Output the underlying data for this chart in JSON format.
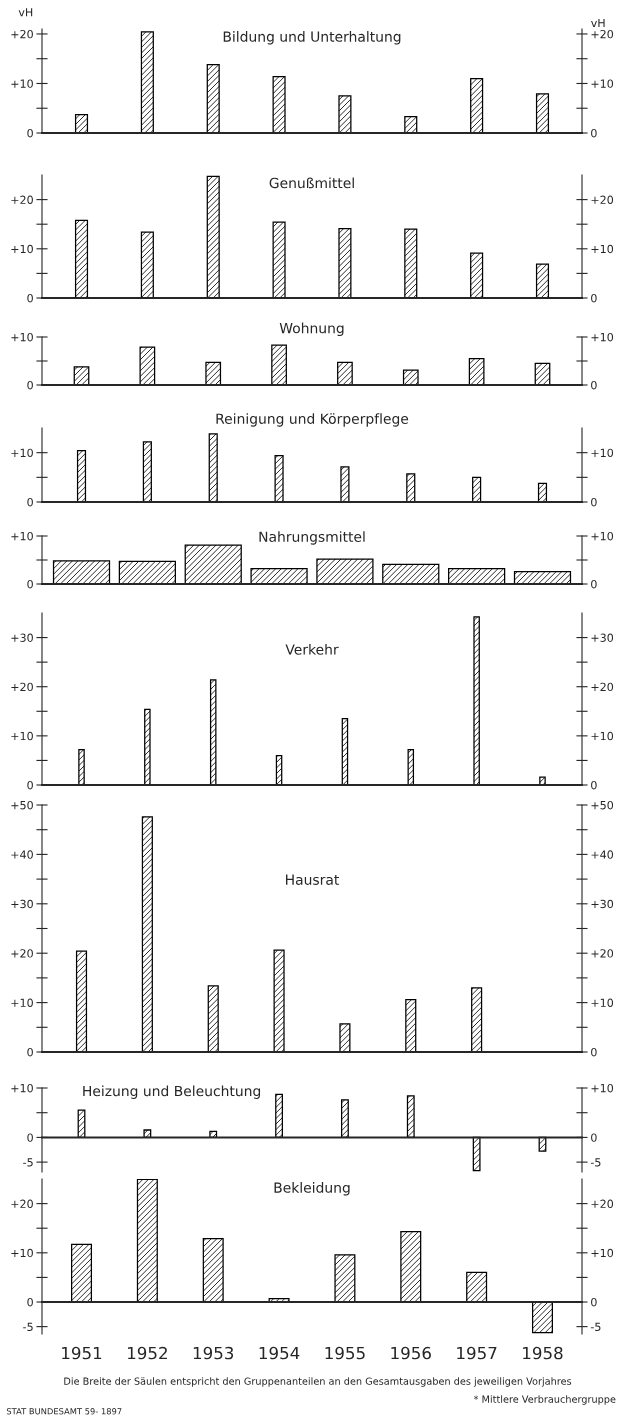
{
  "chart_data": [
    {
      "type": "bar",
      "title": "Bildung und Unterhaltung",
      "ylabel": "vH",
      "y2label": "vH",
      "categories": [
        null,
        null,
        null,
        null,
        null,
        null,
        null,
        null
      ],
      "tick_labels": "y",
      "series": [
        {
          "color": "#000000",
          "values": [
            3.7,
            20.4,
            13.8,
            11.4,
            7.5,
            3.3,
            11.0,
            7.9
          ]
        }
      ],
      "ylim": [
        0,
        21
      ],
      "yticks": [
        {
          "value": 0,
          "label": "0"
        },
        {
          "value": 5,
          "label": null
        },
        {
          "value": 10,
          "label": "+10"
        },
        {
          "value": 15,
          "label": null
        },
        {
          "value": 20,
          "label": "+20"
        }
      ],
      "y2lim": [
        0,
        21
      ],
      "y2ticks": [
        {
          "value": 0,
          "label": "0"
        },
        {
          "value": 5,
          "label": null
        },
        {
          "value": 10,
          "label": "+10"
        },
        {
          "value": 15,
          "label": null
        },
        {
          "value": 20,
          "label": "+20"
        }
      ]
    },
    {
      "type": "bar",
      "title": "Genußmittel",
      "categories": [
        null,
        null,
        null,
        null,
        null,
        null,
        null,
        null
      ],
      "tick_labels": "y",
      "series": [
        {
          "color": "#000000",
          "values": [
            15.8,
            13.4,
            24.7,
            15.4,
            14.1,
            14.0,
            9.1,
            6.9
          ]
        }
      ],
      "ylim": [
        0,
        25
      ],
      "yticks": [
        {
          "value": 0,
          "label": "0"
        },
        {
          "value": 5,
          "label": null
        },
        {
          "value": 10,
          "label": "+10"
        },
        {
          "value": 15,
          "label": null
        },
        {
          "value": 20,
          "label": "+20"
        }
      ],
      "y2lim": [
        0,
        25
      ],
      "y2ticks": [
        {
          "value": 0,
          "label": "0"
        },
        {
          "value": 5,
          "label": null
        },
        {
          "value": 10,
          "label": "+10"
        },
        {
          "value": 15,
          "label": null
        },
        {
          "value": 20,
          "label": "+20"
        }
      ]
    },
    {
      "type": "bar",
      "title": "Wohnung",
      "categories": [
        null,
        null,
        null,
        null,
        null,
        null,
        null,
        null
      ],
      "tick_labels": "y",
      "series": [
        {
          "color": "#000000",
          "values": [
            3.8,
            7.9,
            4.7,
            8.3,
            4.7,
            3.1,
            5.5,
            4.5
          ]
        }
      ],
      "ylim": [
        0,
        10
      ],
      "yticks": [
        {
          "value": 0,
          "label": "0"
        },
        {
          "value": 5,
          "label": null
        },
        {
          "value": 10,
          "label": "+10"
        }
      ],
      "y2lim": [
        0,
        10
      ],
      "y2ticks": [
        {
          "value": 0,
          "label": "0"
        },
        {
          "value": 5,
          "label": null
        },
        {
          "value": 10,
          "label": "+10"
        }
      ]
    },
    {
      "type": "bar",
      "title": "Reinigung und Körperpflege",
      "categories": [
        null,
        null,
        null,
        null,
        null,
        null,
        null,
        null
      ],
      "tick_labels": "y",
      "series": [
        {
          "color": "#000000",
          "values": [
            10.4,
            12.2,
            13.8,
            9.4,
            7.1,
            5.7,
            5.0,
            3.8
          ]
        }
      ],
      "ylim": [
        0,
        15
      ],
      "yticks": [
        {
          "value": 0,
          "label": "0"
        },
        {
          "value": 5,
          "label": null
        },
        {
          "value": 10,
          "label": "+10"
        }
      ],
      "y2lim": [
        0,
        15
      ],
      "y2ticks": [
        {
          "value": 0,
          "label": "0"
        },
        {
          "value": 5,
          "label": null
        },
        {
          "value": 10,
          "label": "+10"
        }
      ]
    },
    {
      "type": "bar",
      "title": "Nahrungsmittel",
      "categories": [
        null,
        null,
        null,
        null,
        null,
        null,
        null,
        null
      ],
      "tick_labels": "y",
      "series": [
        {
          "color": "#000000",
          "values": [
            4.8,
            4.7,
            8.1,
            3.2,
            5.2,
            4.1,
            3.2,
            2.6
          ]
        }
      ],
      "ylim": [
        0,
        10
      ],
      "yticks": [
        {
          "value": 0,
          "label": "0"
        },
        {
          "value": 5,
          "label": null
        },
        {
          "value": 10,
          "label": "+10"
        }
      ],
      "y2lim": [
        0,
        10
      ],
      "y2ticks": [
        {
          "value": 0,
          "label": "0"
        },
        {
          "value": 5,
          "label": null
        },
        {
          "value": 10,
          "label": "+10"
        }
      ]
    },
    {
      "type": "bar",
      "title": "Verkehr",
      "categories": [
        null,
        null,
        null,
        null,
        null,
        null,
        null,
        null
      ],
      "tick_labels": "y",
      "series": [
        {
          "color": "#000000",
          "values": [
            7.2,
            15.4,
            21.4,
            6.0,
            13.5,
            7.2,
            34.2,
            1.6
          ]
        }
      ],
      "ylim": [
        0,
        35
      ],
      "yticks": [
        {
          "value": 0,
          "label": "0"
        },
        {
          "value": 5,
          "label": null
        },
        {
          "value": 10,
          "label": "+10"
        },
        {
          "value": 15,
          "label": null
        },
        {
          "value": 20,
          "label": "+20"
        },
        {
          "value": 25,
          "label": null
        },
        {
          "value": 30,
          "label": "+30"
        }
      ],
      "y2lim": [
        0,
        35
      ],
      "y2ticks": [
        {
          "value": 0,
          "label": "0"
        },
        {
          "value": 5,
          "label": null
        },
        {
          "value": 10,
          "label": "+10"
        },
        {
          "value": 15,
          "label": null
        },
        {
          "value": 20,
          "label": "+20"
        },
        {
          "value": 25,
          "label": null
        },
        {
          "value": 30,
          "label": "+30"
        }
      ]
    },
    {
      "type": "bar",
      "title": "Hausrat",
      "categories": [
        null,
        null,
        null,
        null,
        null,
        null,
        null,
        null
      ],
      "tick_labels": "y",
      "series": [
        {
          "color": "#000000",
          "values": [
            20.4,
            47.6,
            13.4,
            20.6,
            5.7,
            10.6,
            13.0,
            0
          ]
        }
      ],
      "ylim": [
        0,
        50
      ],
      "yticks": [
        {
          "value": 0,
          "label": "0"
        },
        {
          "value": 5,
          "label": null
        },
        {
          "value": 10,
          "label": "+10"
        },
        {
          "value": 15,
          "label": null
        },
        {
          "value": 20,
          "label": "+20"
        },
        {
          "value": 25,
          "label": null
        },
        {
          "value": 30,
          "label": "+30"
        },
        {
          "value": 35,
          "label": null
        },
        {
          "value": 40,
          "label": "+40"
        },
        {
          "value": 45,
          "label": null
        },
        {
          "value": 50,
          "label": "+50"
        }
      ],
      "y2lim": [
        0,
        50
      ],
      "y2ticks": [
        {
          "value": 0,
          "label": "0"
        },
        {
          "value": 5,
          "label": null
        },
        {
          "value": 10,
          "label": "+10"
        },
        {
          "value": 15,
          "label": null
        },
        {
          "value": 20,
          "label": "+20"
        },
        {
          "value": 25,
          "label": null
        },
        {
          "value": 30,
          "label": "+30"
        },
        {
          "value": 35,
          "label": null
        },
        {
          "value": 40,
          "label": "+40"
        },
        {
          "value": 45,
          "label": null
        },
        {
          "value": 50,
          "label": "+50"
        }
      ]
    },
    {
      "type": "bar",
      "title": "Heizung und Beleuchtung",
      "categories": [
        null,
        null,
        null,
        null,
        null,
        null,
        null,
        null
      ],
      "tick_labels": "y",
      "series": [
        {
          "color": "#000000",
          "values": [
            5.5,
            1.5,
            1.2,
            8.7,
            7.6,
            8.4,
            -6.7,
            -2.8
          ]
        }
      ],
      "ylim": [
        -7,
        10
      ],
      "yticks": [
        {
          "value": -5,
          "label": "-5"
        },
        {
          "value": 0,
          "label": "0"
        },
        {
          "value": 5,
          "label": null
        },
        {
          "value": 10,
          "label": "+10"
        }
      ],
      "y2lim": [
        -7,
        10
      ],
      "y2ticks": [
        {
          "value": -5,
          "label": "-5"
        },
        {
          "value": 0,
          "label": "0"
        },
        {
          "value": 5,
          "label": null
        },
        {
          "value": 10,
          "label": "+10"
        }
      ]
    },
    {
      "type": "bar",
      "title": "Bekleidung",
      "categories": [
        "1951",
        "1952",
        "1953",
        "1954",
        "1955",
        "1956",
        "1957",
        "1958"
      ],
      "series": [
        {
          "color": "#000000",
          "values": [
            11.7,
            24.9,
            12.9,
            0.7,
            9.6,
            14.3,
            6.0,
            -6.2
          ]
        }
      ],
      "ylim": [
        -6.5,
        25
      ],
      "yticks": [
        {
          "value": -5,
          "label": "-5"
        },
        {
          "value": 0,
          "label": "0"
        },
        {
          "value": 5,
          "label": null
        },
        {
          "value": 10,
          "label": "+10"
        },
        {
          "value": 15,
          "label": null
        },
        {
          "value": 20,
          "label": "+20"
        }
      ],
      "y2lim": [
        -6.5,
        25
      ],
      "y2ticks": [
        {
          "value": -5,
          "label": "-5"
        },
        {
          "value": 0,
          "label": "0"
        },
        {
          "value": 5,
          "label": null
        },
        {
          "value": 10,
          "label": "+10"
        },
        {
          "value": 15,
          "label": null
        },
        {
          "value": 20,
          "label": "+20"
        }
      ],
      "annotations": [
        "Die Breite der Säulen entspricht den Gruppenanteilen an den Gesamtausgaben des jeweiligen Vorjahres",
        "* Mittlere Verbrauchergruppe",
        "STAT BUNDESAMT 59- 1897"
      ]
    }
  ]
}
